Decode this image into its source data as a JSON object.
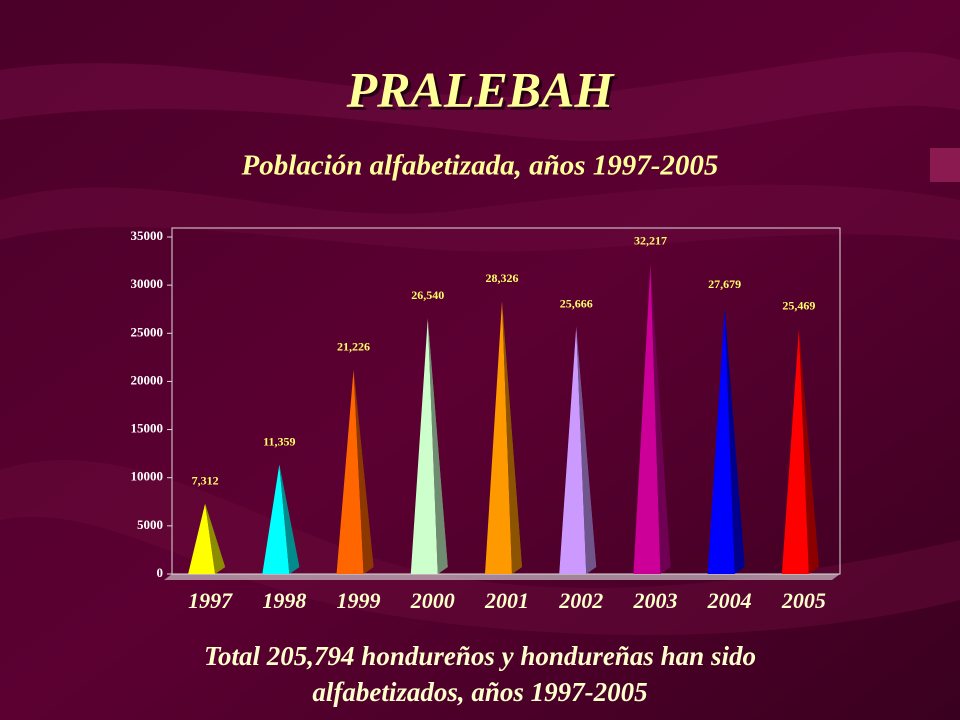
{
  "chart_data": {
    "type": "bar",
    "title": "PRALEBAH",
    "subtitle": "Población alfabetizada, años 1997-2005",
    "annotation": "Total 205,794 hondureños y hondureñas han sido alfabetizados, años 1997-2005",
    "categories": [
      "1997",
      "1998",
      "1999",
      "2000",
      "2001",
      "2002",
      "2003",
      "2004",
      "2005"
    ],
    "values": [
      7312,
      11359,
      21226,
      26540,
      28326,
      25666,
      32217,
      27679,
      25469
    ],
    "value_labels": [
      "7,312",
      "11,359",
      "21,226",
      "26,540",
      "28,326",
      "25,666",
      "32,217",
      "27,679",
      "25,469"
    ],
    "colors": [
      "#ffff00",
      "#00ffff",
      "#ff6600",
      "#ccffcc",
      "#ff9900",
      "#cc99ff",
      "#cc0099",
      "#0000ff",
      "#ff0000"
    ],
    "ylim": [
      0,
      35000
    ],
    "yticks": [
      0,
      5000,
      10000,
      15000,
      20000,
      25000,
      30000,
      35000
    ],
    "grid": false
  }
}
